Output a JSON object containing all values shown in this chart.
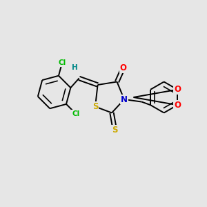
{
  "bg_color": "#e6e6e6",
  "bond_color": "#000000",
  "atom_colors": {
    "O": "#ff0000",
    "N": "#0000cc",
    "S": "#ccaa00",
    "Cl": "#00bb00",
    "H": "#008888",
    "C": "#000000"
  },
  "figsize": [
    3.0,
    3.0
  ],
  "dpi": 100,
  "lw": 1.4,
  "fs": 7.5
}
